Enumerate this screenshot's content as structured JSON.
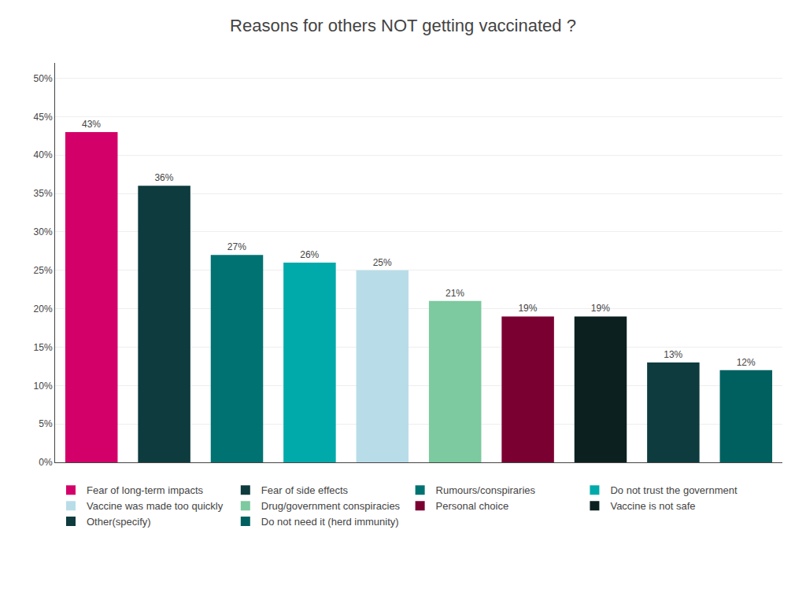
{
  "chart_data": {
    "type": "bar",
    "title": "Reasons for others NOT getting vaccinated ?",
    "categories": [
      "Fear of long-term impacts",
      "Fear of side effects",
      "Rumours/conspiraries",
      "Do not trust the government",
      "Vaccine was made too quickly",
      "Drug/government conspiracies",
      "Personal choice",
      "Vaccine is not safe",
      "Other(specify)",
      "Do not need it (herd immunity)"
    ],
    "values": [
      43,
      36,
      27,
      26,
      25,
      21,
      19,
      19,
      13,
      12
    ],
    "value_labels": [
      "43%",
      "36%",
      "27%",
      "26%",
      "25%",
      "21%",
      "19%",
      "19%",
      "13%",
      "12%"
    ],
    "colors": [
      "#D4006A",
      "#0D3B3E",
      "#007272",
      "#00AAAA",
      "#B8DDE8",
      "#7DC9A0",
      "#7B0032",
      "#0D2020",
      "#0D3B3E",
      "#006060"
    ],
    "ylim": [
      0,
      52
    ],
    "yticks": [
      {
        "value": 0,
        "label": "0%"
      },
      {
        "value": 5,
        "label": "5%"
      },
      {
        "value": 10,
        "label": "10%"
      },
      {
        "value": 15,
        "label": "15%"
      },
      {
        "value": 20,
        "label": "20%"
      },
      {
        "value": 25,
        "label": "25%"
      },
      {
        "value": 30,
        "label": "30%"
      },
      {
        "value": 35,
        "label": "35%"
      },
      {
        "value": 40,
        "label": "40%"
      },
      {
        "value": 45,
        "label": "45%"
      },
      {
        "value": 50,
        "label": "50%"
      }
    ],
    "grid": true,
    "data_labels": true,
    "tick_labels": "y",
    "legend": "bottom"
  }
}
